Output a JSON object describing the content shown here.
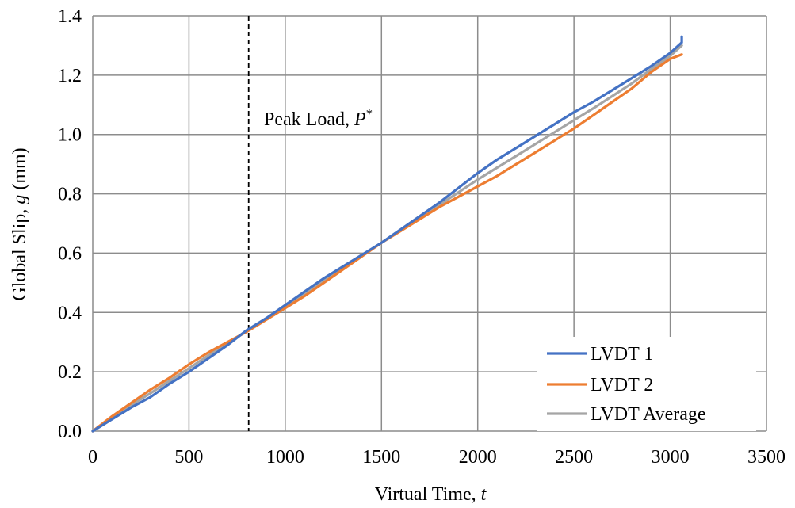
{
  "chart_data": {
    "type": "line",
    "xlabel": {
      "text": "Virtual Time, ",
      "var": "t"
    },
    "ylabel": {
      "text": "Global Slip, ",
      "var": "g",
      "unit": " (mm)"
    },
    "xlim": [
      0,
      3500
    ],
    "ylim": [
      0,
      1.4
    ],
    "x_ticks": [
      0,
      500,
      1000,
      1500,
      2000,
      2500,
      3000,
      3500
    ],
    "x_tick_labels": [
      "0",
      "500",
      "1000",
      "1500",
      "2000",
      "2500",
      "3000",
      "3500"
    ],
    "y_ticks": [
      0,
      0.2,
      0.4,
      0.6,
      0.8,
      1.0,
      1.2,
      1.4
    ],
    "y_tick_labels": [
      "0.0",
      "0.2",
      "0.4",
      "0.6",
      "0.8",
      "1.0",
      "1.2",
      "1.4"
    ],
    "grid": true,
    "legend_position": "bottom-right",
    "annotation": {
      "text": "Peak Load, ",
      "var": "P",
      "sup": "*",
      "x": 810
    },
    "series": [
      {
        "name": "LVDT 1",
        "color": "#4472C4",
        "x": [
          0,
          100,
          200,
          300,
          400,
          500,
          600,
          700,
          800,
          900,
          1000,
          1100,
          1200,
          1300,
          1400,
          1500,
          1600,
          1700,
          1800,
          1900,
          2000,
          2100,
          2200,
          2300,
          2400,
          2500,
          2600,
          2700,
          2800,
          2900,
          3000,
          3060,
          3060
        ],
        "y": [
          0.0,
          0.04,
          0.08,
          0.115,
          0.16,
          0.2,
          0.245,
          0.29,
          0.34,
          0.38,
          0.425,
          0.47,
          0.515,
          0.555,
          0.595,
          0.635,
          0.68,
          0.725,
          0.77,
          0.82,
          0.87,
          0.915,
          0.955,
          0.995,
          1.035,
          1.075,
          1.11,
          1.15,
          1.19,
          1.23,
          1.275,
          1.31,
          1.33
        ]
      },
      {
        "name": "LVDT 2",
        "color": "#ED7D31",
        "x": [
          0,
          100,
          200,
          300,
          400,
          500,
          600,
          700,
          800,
          900,
          1000,
          1100,
          1200,
          1300,
          1400,
          1500,
          1600,
          1700,
          1800,
          1900,
          2000,
          2100,
          2200,
          2300,
          2400,
          2500,
          2600,
          2700,
          2800,
          2900,
          3000,
          3060
        ],
        "y": [
          0.0,
          0.05,
          0.095,
          0.14,
          0.18,
          0.225,
          0.265,
          0.3,
          0.335,
          0.375,
          0.415,
          0.455,
          0.5,
          0.545,
          0.59,
          0.635,
          0.675,
          0.715,
          0.755,
          0.79,
          0.825,
          0.86,
          0.9,
          0.94,
          0.98,
          1.02,
          1.065,
          1.11,
          1.155,
          1.21,
          1.255,
          1.27
        ]
      },
      {
        "name": "LVDT Average",
        "color": "#A5A5A5",
        "x": [
          0,
          100,
          200,
          300,
          400,
          500,
          600,
          700,
          800,
          900,
          1000,
          1100,
          1200,
          1300,
          1400,
          1500,
          1600,
          1700,
          1800,
          1900,
          2000,
          2100,
          2200,
          2300,
          2400,
          2500,
          2600,
          2700,
          2800,
          2900,
          3000,
          3060
        ],
        "y": [
          0.0,
          0.045,
          0.088,
          0.128,
          0.17,
          0.212,
          0.255,
          0.295,
          0.338,
          0.378,
          0.42,
          0.462,
          0.508,
          0.55,
          0.592,
          0.635,
          0.678,
          0.72,
          0.762,
          0.805,
          0.848,
          0.888,
          0.928,
          0.968,
          1.008,
          1.048,
          1.088,
          1.13,
          1.172,
          1.22,
          1.265,
          1.3
        ]
      }
    ]
  }
}
